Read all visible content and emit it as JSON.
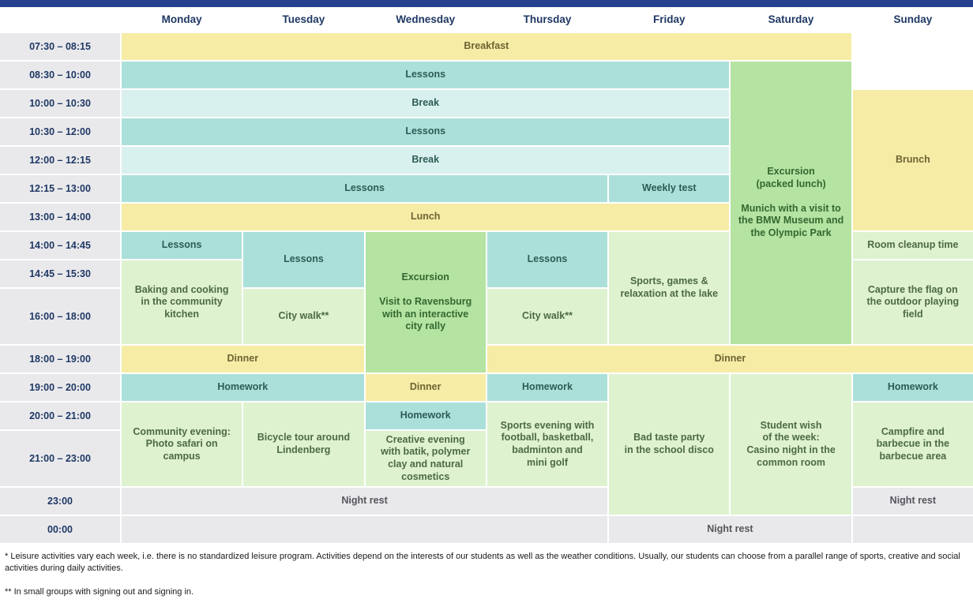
{
  "colors": {
    "topbar": "#263f8f",
    "header_text": "#1f3864",
    "meal_bg": "#f6eca6",
    "lesson_bg": "#abe0da",
    "break_bg": "#d9f1ee",
    "excursion_bg": "#b5e3a2",
    "activity_bg": "#def2d0",
    "rest_bg": "#e9e9ec"
  },
  "days": [
    "Monday",
    "Tuesday",
    "Wednesday",
    "Thursday",
    "Friday",
    "Saturday",
    "Sunday"
  ],
  "times": [
    "07:30 – 08:15",
    "08:30 – 10:00",
    "10:00 – 10:30",
    "10:30 – 12:00",
    "12:00 – 12:15",
    "12:15 – 13:00",
    "13:00 – 14:00",
    "14:00 – 14:45",
    "14:45 – 15:30",
    "16:00 – 18:00",
    "18:00 – 19:00",
    "19:00 – 20:00",
    "20:00 – 21:00",
    "21:00 – 23:00",
    "23:00",
    "00:00"
  ],
  "cells": [
    {
      "row": 1,
      "col": 1,
      "colspan": 6,
      "type": "meal",
      "label": "Breakfast"
    },
    {
      "row": 2,
      "col": 1,
      "colspan": 5,
      "type": "lesson",
      "label": "Lessons"
    },
    {
      "row": 2,
      "col": 6,
      "rowspan": 9,
      "type": "excursion",
      "label": "Excursion\n(packed lunch)",
      "sublabel": "Munich with a visit to\nthe BMW Museum and\nthe Olympic Park"
    },
    {
      "row": 3,
      "col": 1,
      "colspan": 5,
      "type": "break",
      "label": "Break"
    },
    {
      "row": 3,
      "col": 7,
      "rowspan": 5,
      "type": "meal",
      "label": "Brunch"
    },
    {
      "row": 4,
      "col": 1,
      "colspan": 5,
      "type": "lesson",
      "label": "Lessons"
    },
    {
      "row": 5,
      "col": 1,
      "colspan": 5,
      "type": "break",
      "label": "Break"
    },
    {
      "row": 6,
      "col": 1,
      "colspan": 4,
      "type": "lesson",
      "label": "Lessons"
    },
    {
      "row": 6,
      "col": 5,
      "type": "lesson",
      "label": "Weekly test"
    },
    {
      "row": 7,
      "col": 1,
      "colspan": 5,
      "type": "meal",
      "label": "Lunch"
    },
    {
      "row": 8,
      "col": 1,
      "type": "lesson",
      "label": "Lessons"
    },
    {
      "row": 8,
      "col": 2,
      "rowspan": 2,
      "type": "lesson",
      "label": "Lessons"
    },
    {
      "row": 8,
      "col": 3,
      "rowspan": 4,
      "type": "excursion",
      "label": "Excursion",
      "sublabel": "Visit to Ravensburg\nwith an interactive\ncity rally"
    },
    {
      "row": 8,
      "col": 4,
      "rowspan": 2,
      "type": "lesson",
      "label": "Lessons"
    },
    {
      "row": 8,
      "col": 5,
      "rowspan": 3,
      "type": "activity",
      "label": "Sports, games &\nrelaxation at the lake"
    },
    {
      "row": 8,
      "col": 7,
      "type": "activity",
      "label": "Room cleanup time"
    },
    {
      "row": 9,
      "col": 1,
      "rowspan": 2,
      "type": "activity",
      "label": "Baking and cooking\nin the community\nkitchen"
    },
    {
      "row": 9,
      "col": 7,
      "rowspan": 2,
      "type": "activity",
      "label": "Capture the flag on\nthe outdoor playing\nfield"
    },
    {
      "row": 10,
      "col": 2,
      "type": "activity",
      "label": "City walk**"
    },
    {
      "row": 10,
      "col": 4,
      "type": "activity",
      "label": "City walk**"
    },
    {
      "row": 11,
      "col": 1,
      "colspan": 2,
      "type": "meal",
      "label": "Dinner"
    },
    {
      "row": 11,
      "col": 4,
      "colspan": 4,
      "type": "meal",
      "label": "Dinner"
    },
    {
      "row": 12,
      "col": 1,
      "colspan": 2,
      "type": "lesson",
      "label": "Homework"
    },
    {
      "row": 12,
      "col": 3,
      "type": "meal",
      "label": "Dinner"
    },
    {
      "row": 12,
      "col": 4,
      "type": "lesson",
      "label": "Homework"
    },
    {
      "row": 12,
      "col": 5,
      "rowspan": 4,
      "type": "activity",
      "label": "Bad taste party\nin the school disco"
    },
    {
      "row": 12,
      "col": 6,
      "rowspan": 4,
      "type": "activity",
      "label": "Student wish\nof the week:\nCasino night in the\ncommon room"
    },
    {
      "row": 12,
      "col": 7,
      "type": "lesson",
      "label": "Homework"
    },
    {
      "row": 13,
      "col": 1,
      "rowspan": 2,
      "type": "activity",
      "label": "Community evening:\nPhoto safari on\ncampus"
    },
    {
      "row": 13,
      "col": 2,
      "rowspan": 2,
      "type": "activity",
      "label": "Bicycle tour around\nLindenberg"
    },
    {
      "row": 13,
      "col": 3,
      "type": "lesson",
      "label": "Homework"
    },
    {
      "row": 13,
      "col": 4,
      "rowspan": 2,
      "type": "activity",
      "label": "Sports evening with\nfootball, basketball,\nbadminton and\nmini golf"
    },
    {
      "row": 13,
      "col": 7,
      "rowspan": 2,
      "type": "activity",
      "label": "Campfire and\nbarbecue in the\nbarbecue area"
    },
    {
      "row": 14,
      "col": 3,
      "type": "activity",
      "label": "Creative evening\nwith batik, polymer\nclay and natural\ncosmetics"
    },
    {
      "row": 15,
      "col": 1,
      "colspan": 4,
      "type": "rest",
      "label": "Night rest"
    },
    {
      "row": 15,
      "col": 7,
      "type": "rest",
      "label": "Night rest"
    },
    {
      "row": 16,
      "col": 1,
      "colspan": 4,
      "type": "rest",
      "label": ""
    },
    {
      "row": 16,
      "col": 5,
      "colspan": 2,
      "type": "rest",
      "label": "Night rest"
    },
    {
      "row": 16,
      "col": 7,
      "type": "rest",
      "label": ""
    }
  ],
  "footnotes": {
    "note1": "* Leisure activities vary each week, i.e. there is no standardized leisure program. Activities depend on the interests of our students as well as the weather conditions. Usually, our students can choose from a parallel range of sports, creative and social activities during daily activities.",
    "note2": "** In small groups with signing out and signing in."
  }
}
